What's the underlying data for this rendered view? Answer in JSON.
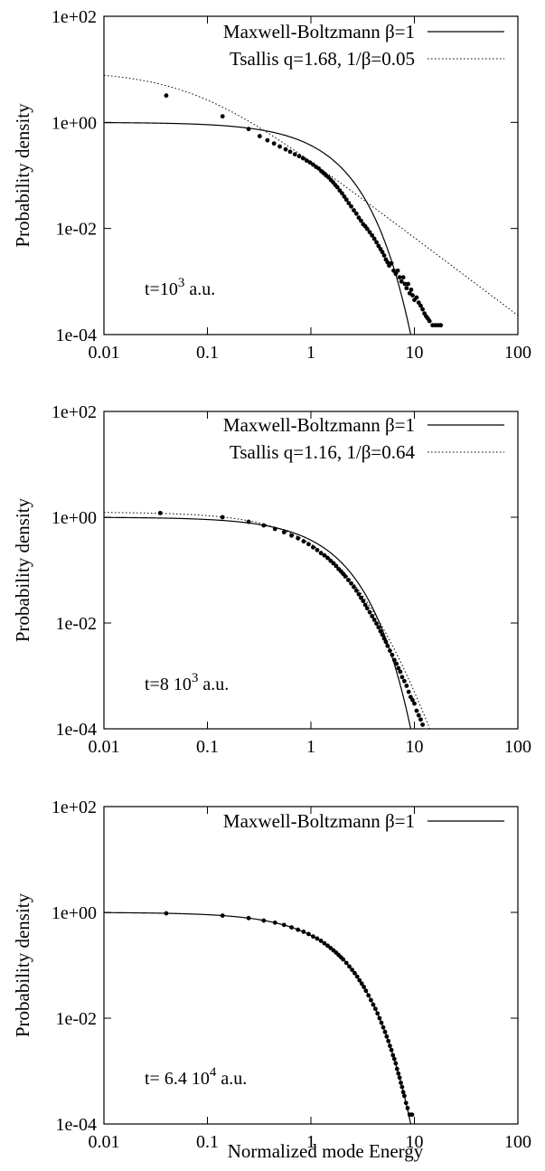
{
  "figure": {
    "xlabel": "Normalized mode Energy"
  },
  "chart_data": [
    {
      "type": "scatter",
      "xscale": "log",
      "yscale": "log",
      "xlim": [
        0.01,
        100
      ],
      "ylim": [
        0.0001,
        100
      ],
      "xticks": [
        "0.01",
        "0.1",
        "1",
        "10",
        "100"
      ],
      "yticks": [
        "1e-04",
        "1e-02",
        "1e+00",
        "1e+02"
      ],
      "ylabel": "Probability density",
      "xlabel": "",
      "legend_position": "top-right",
      "annotation": {
        "prefix": "t=10",
        "sup": "3",
        "suffix": " a.u."
      },
      "series": [
        {
          "name": "Maxwell-Boltzmann β=1",
          "kind": "line",
          "style": "solid",
          "function": "exp",
          "beta": 1,
          "x_max": 9.2
        },
        {
          "name": "Tsallis  q=1.68, 1/β=0.05",
          "kind": "line",
          "style": "dotted",
          "function": "tsallis",
          "A": 9.3,
          "q": 1.68,
          "inv_beta": 0.05
        },
        {
          "kind": "points",
          "x": [
            0.04,
            0.14,
            0.25,
            0.32,
            0.38,
            0.44,
            0.5,
            0.57,
            0.63,
            0.7,
            0.77,
            0.84,
            0.91,
            0.98,
            1.05,
            1.12,
            1.19,
            1.26,
            1.33,
            1.4,
            1.48,
            1.56,
            1.64,
            1.72,
            1.8,
            1.9,
            2.0,
            2.1,
            2.2,
            2.32,
            2.45,
            2.6,
            2.75,
            2.9,
            3.05,
            3.2,
            3.35,
            3.5,
            3.7,
            3.9,
            4.1,
            4.3,
            4.5,
            4.7,
            4.9,
            5.1,
            5.3,
            5.5,
            5.7,
            6.0,
            6.3,
            6.6,
            6.9,
            7.2,
            7.5,
            7.8,
            8.1,
            8.4,
            8.7,
            9.0,
            9.3,
            9.6,
            10.0,
            10.5,
            11.0,
            11.5,
            12.0,
            12.5,
            13.0,
            13.5,
            14.0,
            15.0,
            16.0,
            17.0,
            18.0
          ],
          "y": [
            3.2,
            1.3,
            0.75,
            0.55,
            0.46,
            0.4,
            0.35,
            0.31,
            0.28,
            0.25,
            0.23,
            0.21,
            0.19,
            0.175,
            0.16,
            0.145,
            0.135,
            0.12,
            0.11,
            0.1,
            0.092,
            0.082,
            0.074,
            0.066,
            0.06,
            0.052,
            0.046,
            0.04,
            0.035,
            0.03,
            0.026,
            0.022,
            0.019,
            0.016,
            0.014,
            0.012,
            0.011,
            0.0098,
            0.0085,
            0.0074,
            0.0064,
            0.0055,
            0.0047,
            0.0041,
            0.0036,
            0.0031,
            0.0026,
            0.0023,
            0.002,
            0.0022,
            0.0016,
            0.0014,
            0.0016,
            0.0012,
            0.001,
            0.0012,
            0.0009,
            0.00075,
            0.0009,
            0.0006,
            0.0007,
            0.00055,
            0.00045,
            0.0005,
            0.0004,
            0.00035,
            0.0003,
            0.00025,
            0.00022,
            0.0002,
            0.00018,
            0.00015,
            0.00015,
            0.00015,
            0.00015
          ]
        }
      ]
    },
    {
      "type": "scatter",
      "xscale": "log",
      "yscale": "log",
      "xlim": [
        0.01,
        100
      ],
      "ylim": [
        0.0001,
        100
      ],
      "xticks": [
        "0.01",
        "0.1",
        "1",
        "10",
        "100"
      ],
      "yticks": [
        "1e-04",
        "1e-02",
        "1e+00",
        "1e+02"
      ],
      "ylabel": "Probability density",
      "xlabel": "",
      "legend_position": "top-right",
      "annotation": {
        "prefix": "t=8 10",
        "sup": "3",
        "suffix": " a.u."
      },
      "series": [
        {
          "name": "Maxwell-Boltzmann β=1",
          "kind": "line",
          "style": "solid",
          "function": "exp",
          "beta": 1,
          "x_max": 9.2
        },
        {
          "name": "Tsallis  q=1.16, 1/β=0.64",
          "kind": "line",
          "style": "dotted",
          "function": "tsallis",
          "A": 1.25,
          "q": 1.16,
          "inv_beta": 0.64
        },
        {
          "kind": "points",
          "x": [
            0.035,
            0.14,
            0.25,
            0.35,
            0.45,
            0.55,
            0.65,
            0.75,
            0.85,
            0.95,
            1.05,
            1.15,
            1.25,
            1.35,
            1.45,
            1.55,
            1.65,
            1.75,
            1.85,
            1.95,
            2.05,
            2.15,
            2.3,
            2.45,
            2.6,
            2.75,
            2.9,
            3.05,
            3.2,
            3.35,
            3.5,
            3.7,
            3.9,
            4.1,
            4.3,
            4.5,
            4.7,
            4.9,
            5.1,
            5.3,
            5.5,
            5.8,
            6.1,
            6.4,
            6.7,
            7.0,
            7.3,
            7.6,
            8.0,
            8.4,
            8.8,
            9.2,
            9.6,
            10.0,
            10.5,
            11.0,
            11.5,
            12.0
          ],
          "y": [
            1.2,
            1.0,
            0.82,
            0.7,
            0.6,
            0.52,
            0.45,
            0.4,
            0.35,
            0.31,
            0.27,
            0.24,
            0.21,
            0.19,
            0.17,
            0.15,
            0.135,
            0.12,
            0.105,
            0.095,
            0.085,
            0.076,
            0.065,
            0.056,
            0.048,
            0.041,
            0.035,
            0.03,
            0.026,
            0.022,
            0.019,
            0.016,
            0.0135,
            0.0115,
            0.0098,
            0.0083,
            0.007,
            0.006,
            0.0051,
            0.0044,
            0.0037,
            0.003,
            0.0025,
            0.002,
            0.0017,
            0.0014,
            0.0012,
            0.00095,
            0.0008,
            0.00065,
            0.0005,
            0.0004,
            0.00035,
            0.0003,
            0.00022,
            0.00018,
            0.00015,
            0.00012
          ]
        }
      ]
    },
    {
      "type": "scatter",
      "xscale": "log",
      "yscale": "log",
      "xlim": [
        0.01,
        100
      ],
      "ylim": [
        0.0001,
        100
      ],
      "xticks": [
        "0.01",
        "0.1",
        "1",
        "10",
        "100"
      ],
      "yticks": [
        "1e-04",
        "1e-02",
        "1e+00",
        "1e+02"
      ],
      "ylabel": "Probability density",
      "xlabel": "Normalized mode Energy",
      "legend_position": "top-right",
      "annotation": {
        "prefix": "t= 6.4 10",
        "sup": "4",
        "suffix": " a.u."
      },
      "series": [
        {
          "name": "Maxwell-Boltzmann β=1",
          "kind": "line",
          "style": "solid",
          "function": "exp",
          "beta": 1,
          "x_max": 9.2
        },
        {
          "kind": "points",
          "x": [
            0.04,
            0.14,
            0.25,
            0.35,
            0.45,
            0.55,
            0.65,
            0.75,
            0.85,
            0.95,
            1.05,
            1.15,
            1.25,
            1.35,
            1.45,
            1.55,
            1.65,
            1.75,
            1.85,
            1.95,
            2.05,
            2.2,
            2.35,
            2.5,
            2.65,
            2.8,
            2.95,
            3.1,
            3.25,
            3.4,
            3.6,
            3.8,
            4.0,
            4.2,
            4.4,
            4.6,
            4.8,
            5.0,
            5.2,
            5.4,
            5.6,
            5.8,
            6.0,
            6.2,
            6.4,
            6.6,
            6.8,
            7.0,
            7.2,
            7.4,
            7.6,
            7.8,
            8.0,
            8.3,
            8.6,
            9.0,
            9.5
          ],
          "y": [
            0.96,
            0.87,
            0.78,
            0.7,
            0.64,
            0.58,
            0.52,
            0.47,
            0.43,
            0.39,
            0.35,
            0.32,
            0.29,
            0.26,
            0.235,
            0.212,
            0.192,
            0.174,
            0.157,
            0.142,
            0.129,
            0.111,
            0.095,
            0.082,
            0.071,
            0.061,
            0.052,
            0.045,
            0.039,
            0.033,
            0.027,
            0.022,
            0.018,
            0.015,
            0.0123,
            0.01,
            0.0082,
            0.0067,
            0.0055,
            0.0045,
            0.0037,
            0.003,
            0.0025,
            0.002,
            0.0017,
            0.0014,
            0.0011,
            0.0009,
            0.00075,
            0.0006,
            0.0005,
            0.0004,
            0.00034,
            0.00025,
            0.0002,
            0.00015,
            0.00015
          ]
        }
      ]
    }
  ]
}
